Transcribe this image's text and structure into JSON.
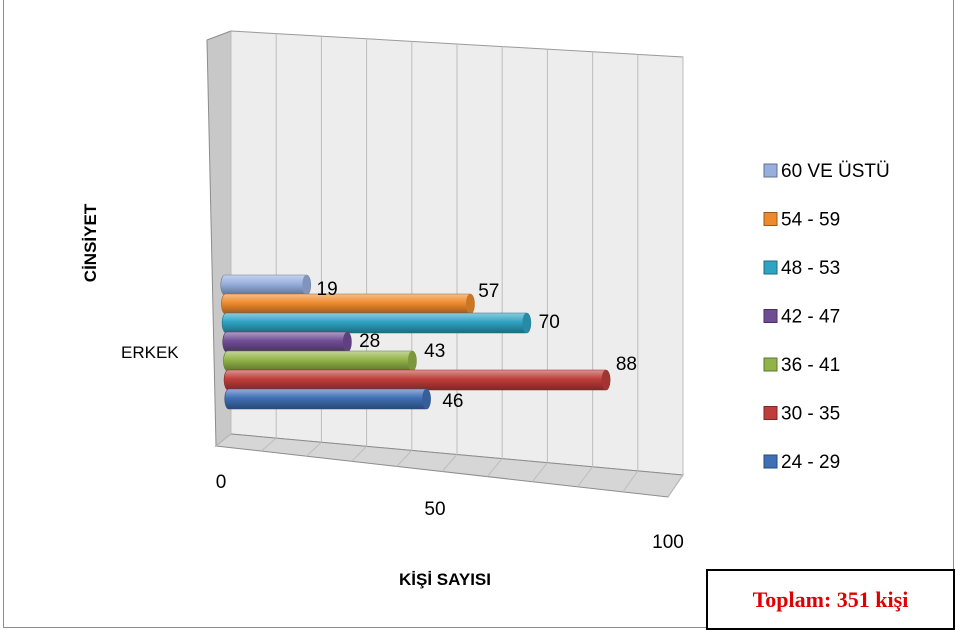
{
  "chart_data": {
    "type": "bar",
    "orientation": "horizontal",
    "style": "3d-cylinder",
    "title": "",
    "xlabel": "KİŞİ SAYISI",
    "ylabel": "CİNSİYET",
    "categories": [
      "ERKEK"
    ],
    "xlim": [
      0,
      100
    ],
    "x_ticks": [
      "0",
      "50",
      "100"
    ],
    "grid": true,
    "legend_position": "right",
    "series": [
      {
        "name": "24 - 29",
        "values": [
          46
        ],
        "color": "#3f6fb5"
      },
      {
        "name": "30 - 35",
        "values": [
          88
        ],
        "color": "#bf3d3a"
      },
      {
        "name": "36 - 41",
        "values": [
          43
        ],
        "color": "#92b347"
      },
      {
        "name": "42 - 47",
        "values": [
          28
        ],
        "color": "#6f4d94"
      },
      {
        "name": "48 - 53",
        "values": [
          70
        ],
        "color": "#2fa3c2"
      },
      {
        "name": "54 - 59",
        "values": [
          57
        ],
        "color": "#ef8a2c"
      },
      {
        "name": "60 VE ÜSTÜ",
        "values": [
          19
        ],
        "color": "#96afdd"
      }
    ],
    "legend_order": [
      "60 VE ÜSTÜ",
      "54 - 59",
      "48 - 53",
      "42 - 47",
      "36 - 41",
      "30 - 35",
      "24 - 29"
    ]
  },
  "total_box": {
    "text": "Toplam: 351 kişi",
    "color": "#e00000"
  }
}
